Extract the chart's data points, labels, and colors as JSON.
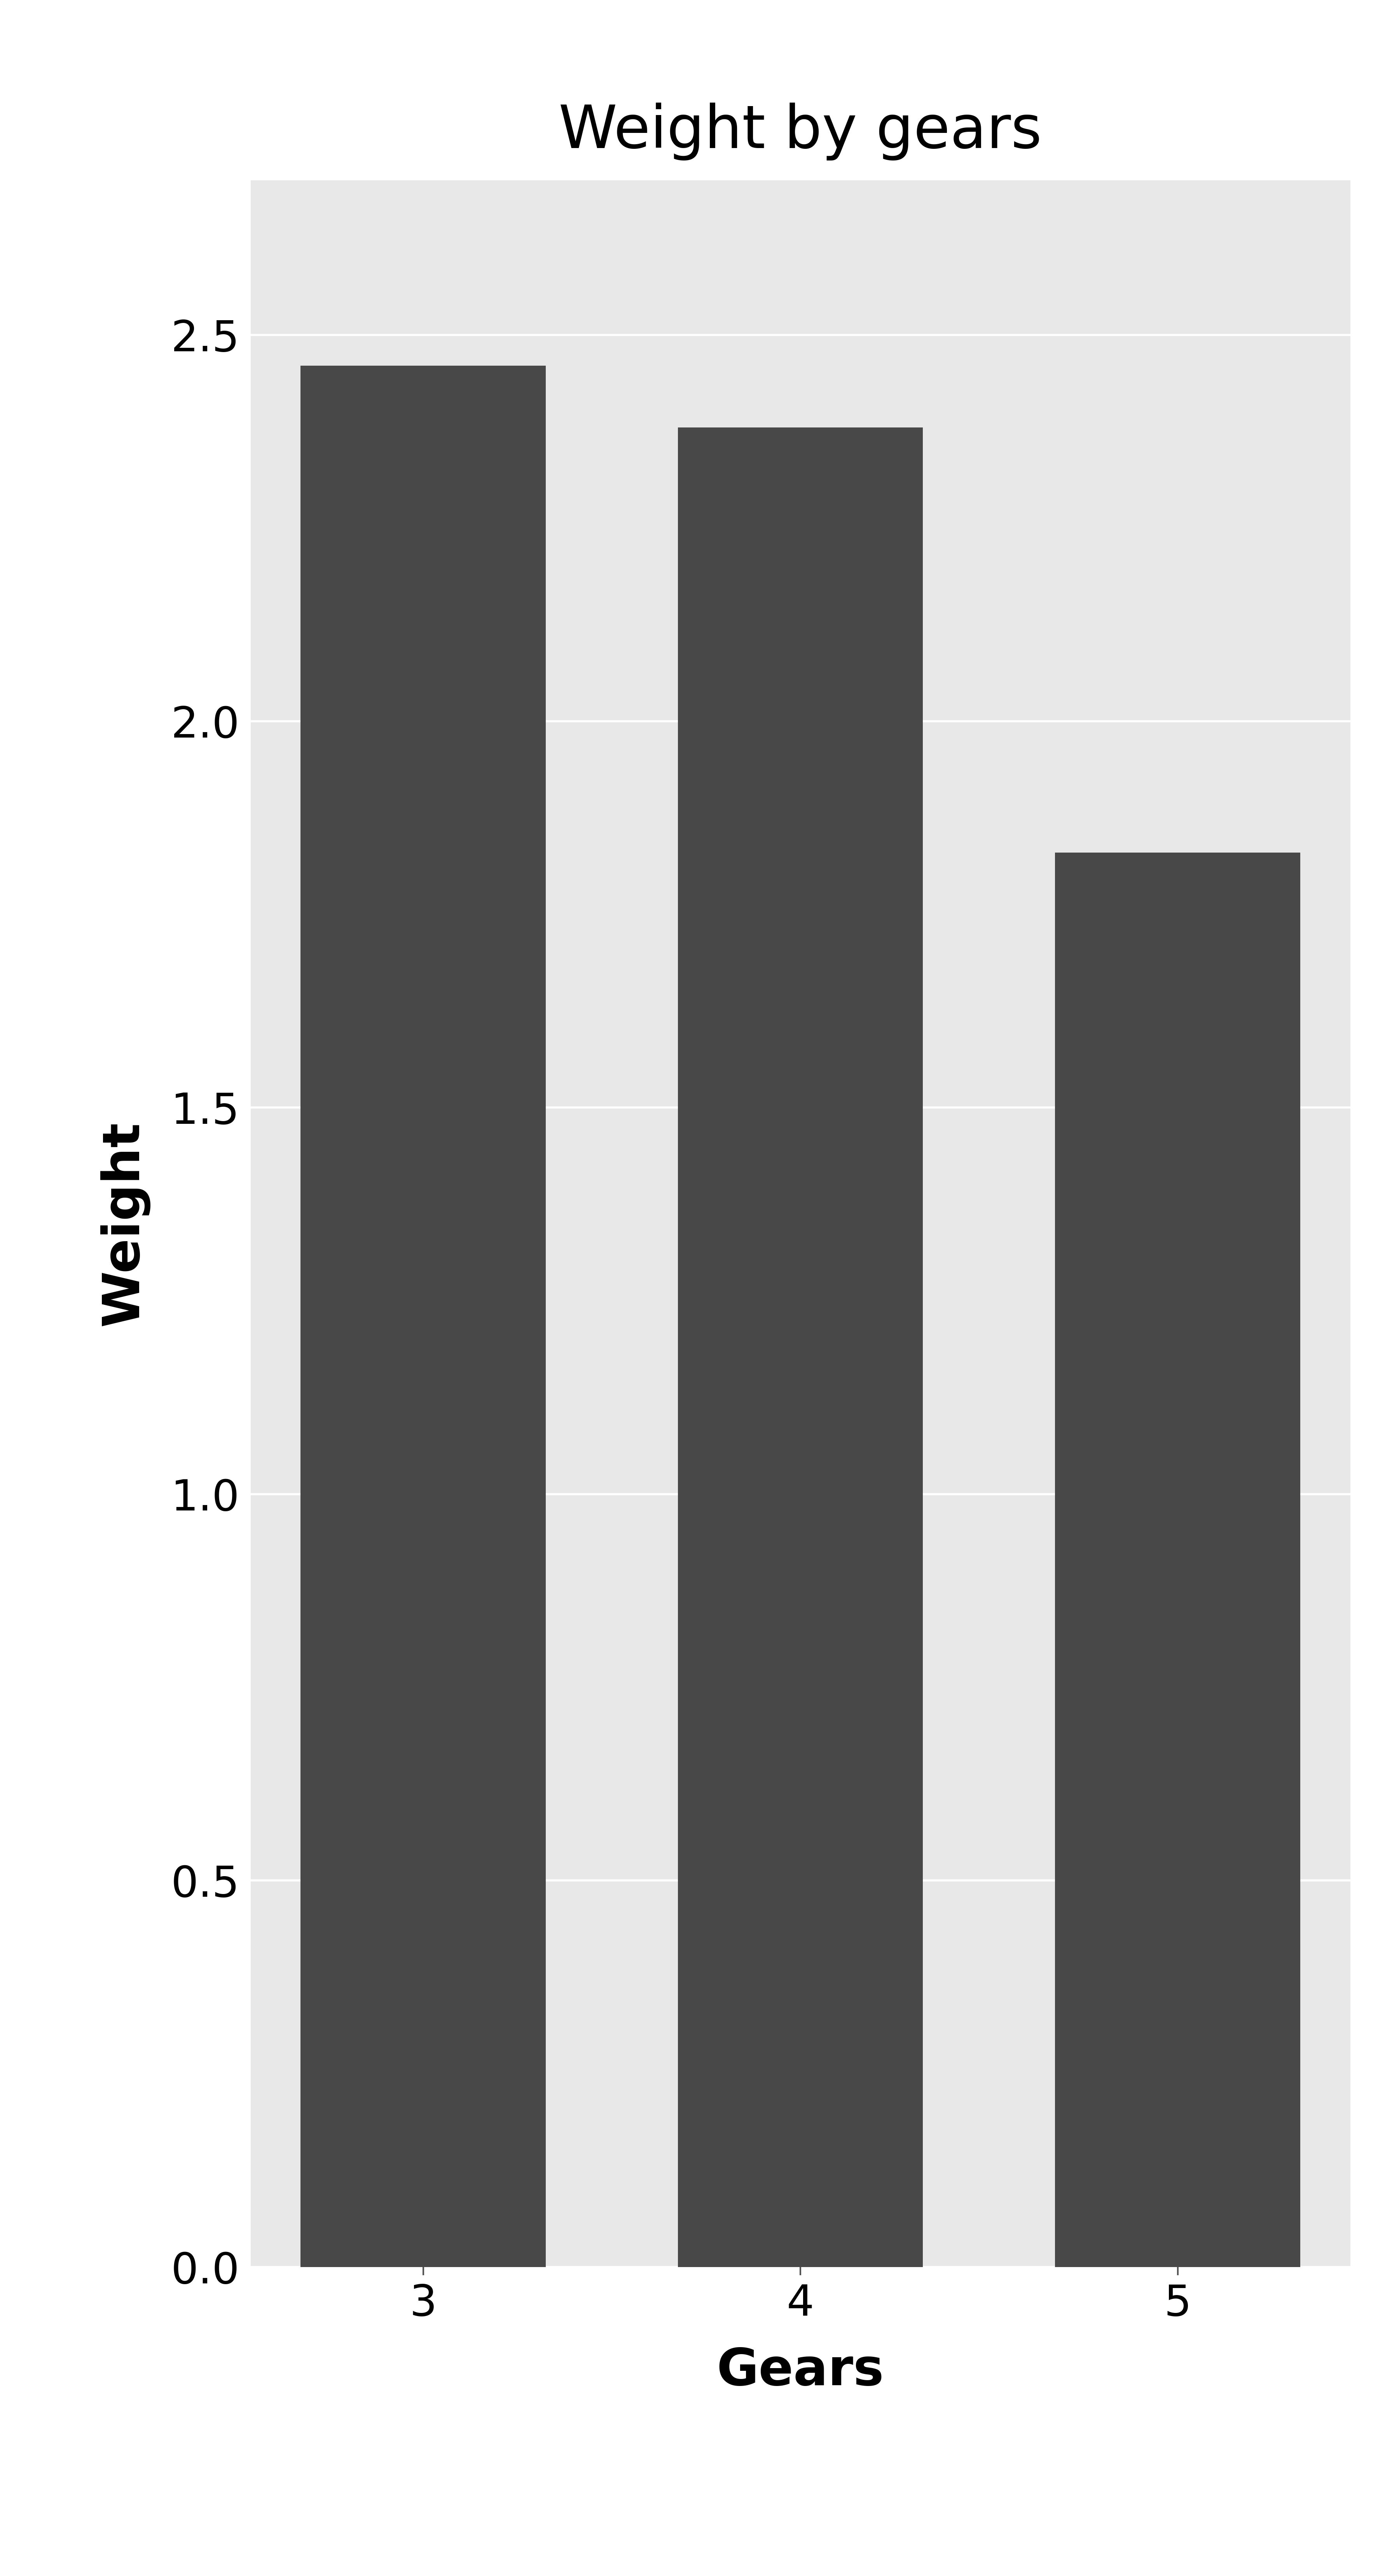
{
  "title": "Weight by gears",
  "xlabel": "Gears",
  "ylabel": "Weight",
  "categories": [
    "3",
    "4",
    "5"
  ],
  "values": [
    2.46,
    2.38,
    1.83
  ],
  "bar_color": "#484848",
  "background_color": "#ffffff",
  "panel_background": "#e8e8e8",
  "ylim": [
    0,
    2.7
  ],
  "yticks": [
    0.0,
    0.5,
    1.0,
    1.5,
    2.0,
    2.5
  ],
  "title_fontsize": 110,
  "axis_label_fontsize": 95,
  "tick_fontsize": 80,
  "bar_width": 0.65,
  "grid_color": "#ffffff",
  "grid_linewidth": 4.0
}
